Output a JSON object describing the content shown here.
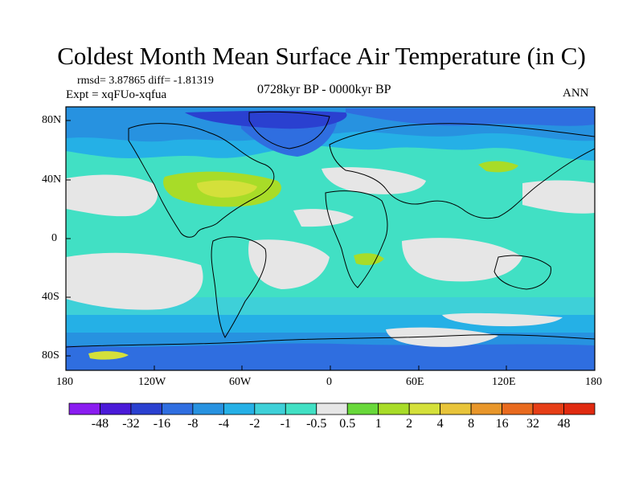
{
  "title": "Coldest Month Mean Surface Air Temperature (in C)",
  "stats_line": "rmsd= 3.87865 diff= -1.81319",
  "experiment_line": "Expt = xqFUo-xqfua",
  "period": "0728kyr BP - 0000kyr BP",
  "season": "ANN",
  "lat_ticks": [
    "80N",
    "40N",
    "0",
    "40S",
    "80S"
  ],
  "lon_ticks": [
    "180",
    "120W",
    "60W",
    "0",
    "60E",
    "120E",
    "180"
  ],
  "colorbar": {
    "labels": [
      "-48",
      "-32",
      "-16",
      "-8",
      "-4",
      "-2",
      "-1",
      "-0.5",
      "0.5",
      "1",
      "2",
      "4",
      "8",
      "16",
      "32",
      "48"
    ],
    "colors": [
      "#8a1cf0",
      "#4a1ad8",
      "#2a40d0",
      "#2f6ee0",
      "#2792e0",
      "#25b0e6",
      "#3ed0d8",
      "#41e0c4",
      "#e6e6e6",
      "#68d83a",
      "#a8dc28",
      "#d4e03a",
      "#e8c43a",
      "#e8962a",
      "#e86a1e",
      "#e63e16",
      "#e02a10"
    ]
  },
  "colors": {
    "ocean_base": "#41e0c4",
    "neutral": "#e6e6e6",
    "mid_cold": "#3ed0d8",
    "cold": "#25b0e6",
    "colder": "#2792e0",
    "coldest": "#2f6ee0",
    "arctic": "#2a40d0",
    "warm": "#a8dc28",
    "warmer": "#d4e03a"
  }
}
